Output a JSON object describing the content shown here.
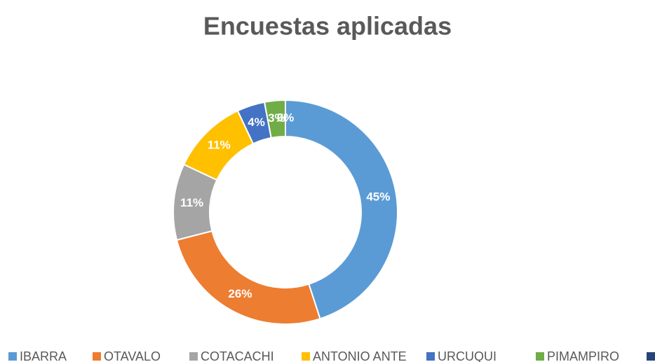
{
  "chart_data": {
    "type": "donut",
    "title": "Encuestas aplicadas",
    "categories": [
      "IBARRA",
      "OTAVALO",
      "COTACACHI",
      "ANTONIO ANTE",
      "URCUQUI",
      "PIMAMPIRO",
      null
    ],
    "values": [
      45,
      26,
      11,
      11,
      4,
      3,
      0
    ],
    "value_labels": [
      "45%",
      "26%",
      "11%",
      "11%",
      "4%",
      "3%",
      "0%"
    ],
    "colors": [
      "#5b9bd5",
      "#ed7d31",
      "#a5a5a5",
      "#ffc000",
      "#4472c4",
      "#70ad47",
      "#264478"
    ],
    "legend": "bottom"
  }
}
